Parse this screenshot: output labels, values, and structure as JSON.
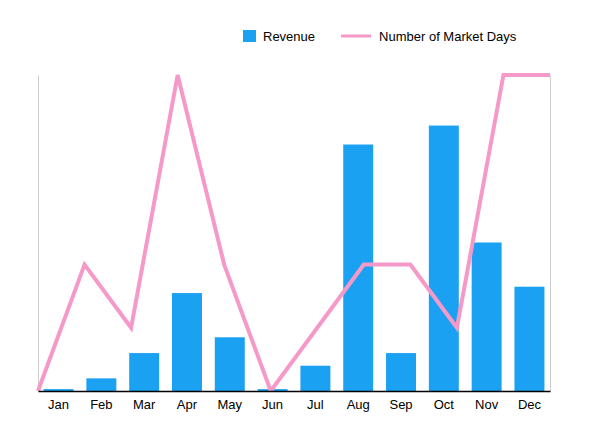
{
  "chart_data": {
    "type": "bar",
    "categories": [
      "Jan",
      "Feb",
      "Mar",
      "Apr",
      "May",
      "Jun",
      "Jul",
      "Aug",
      "Sep",
      "Oct",
      "Nov",
      "Dec"
    ],
    "series": [
      {
        "name": "Revenue",
        "type": "bar",
        "color": "#1ba1f2",
        "values": [
          0.6,
          4,
          12,
          31,
          17,
          0.6,
          8,
          78,
          12,
          84,
          47,
          33
        ]
      },
      {
        "name": "Number of Market Days",
        "type": "line",
        "axis": "y2",
        "color": "#f59ac8",
        "values": [
          0,
          2,
          1,
          5,
          2,
          0,
          1,
          2,
          2,
          1,
          5,
          5
        ]
      }
    ],
    "ylim": [
      0,
      100
    ],
    "y2lim": [
      0,
      5
    ],
    "grid": false,
    "legend": "top",
    "tick_labels": "x"
  }
}
